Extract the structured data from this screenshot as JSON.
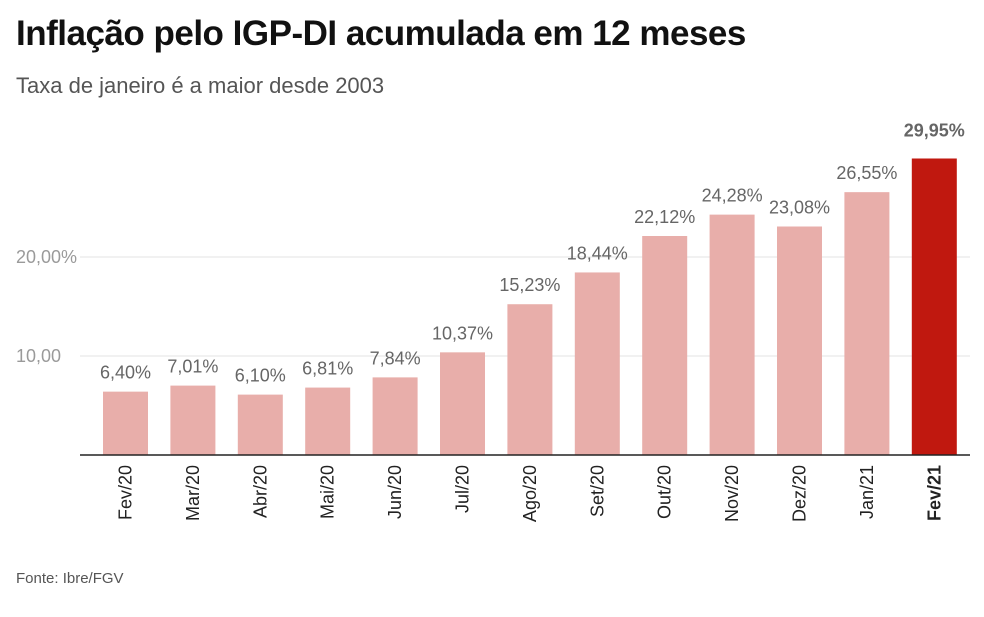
{
  "header": {
    "title": "Inflação pelo IGP-DI acumulada em 12 meses",
    "subtitle": "Taxa de janeiro é a maior desde 2003"
  },
  "footer": {
    "source": "Fonte: Ibre/FGV"
  },
  "colors": {
    "bar": "#e8aeaa",
    "highlight": "#c0180f",
    "grid": "#e3e3e3",
    "axis": "#222222"
  },
  "chart_data": {
    "type": "bar",
    "title": "Inflação pelo IGP-DI acumulada em 12 meses",
    "subtitle": "Taxa de janeiro é a maior desde 2003",
    "xlabel": "",
    "ylabel": "",
    "categories": [
      "Fev/20",
      "Mar/20",
      "Abr/20",
      "Mai/20",
      "Jun/20",
      "Jul/20",
      "Ago/20",
      "Set/20",
      "Out/20",
      "Nov/20",
      "Dez/20",
      "Jan/21",
      "Fev/21"
    ],
    "values": [
      6.4,
      7.01,
      6.1,
      6.81,
      7.84,
      10.37,
      15.23,
      18.44,
      22.12,
      24.28,
      23.08,
      26.55,
      29.95
    ],
    "value_labels": [
      "6,40%",
      "7,01%",
      "6,10%",
      "6,81%",
      "7,84%",
      "10,37%",
      "15,23%",
      "18,44%",
      "22,12%",
      "24,28%",
      "23,08%",
      "26,55%",
      "29,95%"
    ],
    "highlight_index": 12,
    "yticks": [
      10,
      20
    ],
    "ytick_labels": [
      "10,00",
      "20,00%"
    ],
    "ylim": [
      0,
      30
    ],
    "grid": true
  }
}
